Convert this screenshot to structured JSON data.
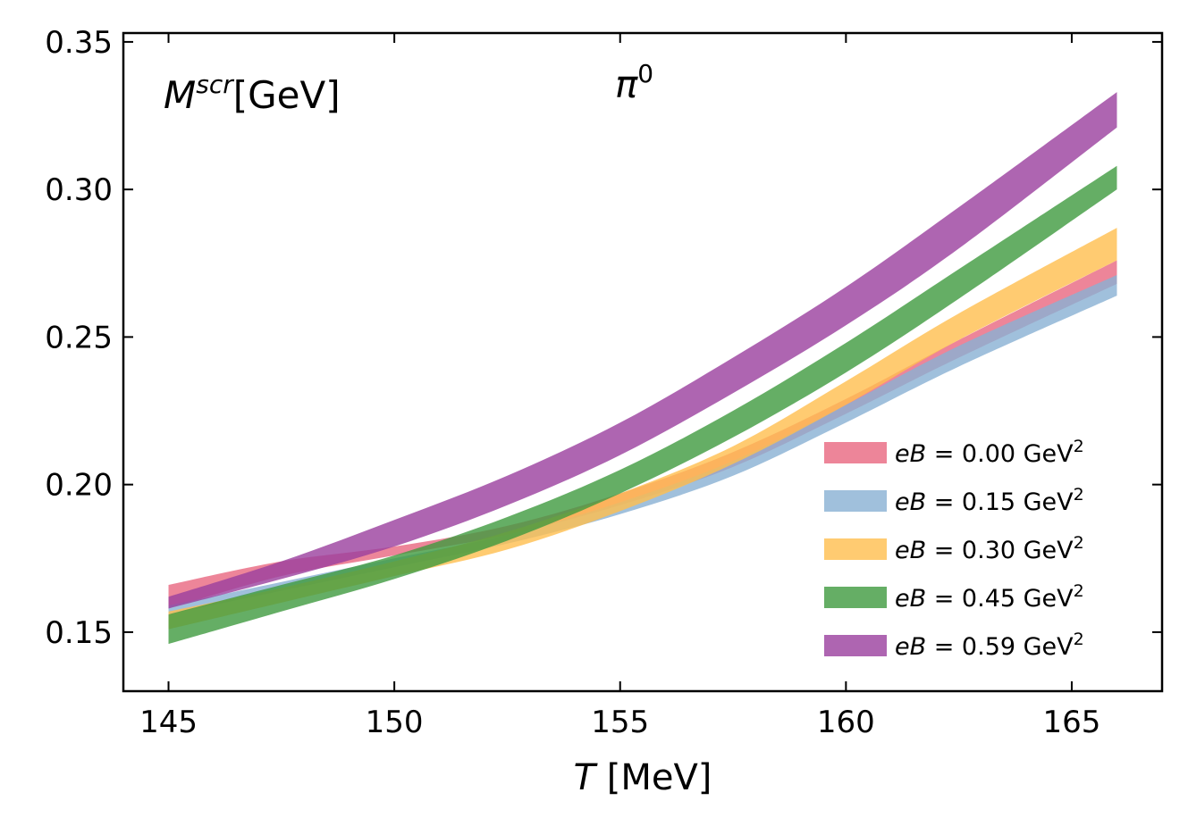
{
  "chart_data": {
    "type": "area",
    "title": "",
    "xlabel": "T [MeV]",
    "ylabel": "",
    "xlim": [
      144,
      167
    ],
    "ylim": [
      0.13,
      0.353
    ],
    "xticks": [
      145,
      150,
      155,
      160,
      165
    ],
    "xtick_labels": [
      "145",
      "150",
      "155",
      "160",
      "165"
    ],
    "yticks": [
      0.15,
      0.2,
      0.25,
      0.3,
      0.35
    ],
    "ytick_labels": [
      "0.15",
      "0.20",
      "0.25",
      "0.30",
      "0.35"
    ],
    "annotations": {
      "ylabel_inside": {
        "base": "M",
        "sup": "scr",
        "suffix": "[GeV]"
      },
      "particle": {
        "base": "π",
        "sup": "0"
      }
    },
    "legend_position": "lower right",
    "x": [
      145,
      147.5,
      150,
      152.5,
      155,
      157.5,
      160,
      162.5,
      166
    ],
    "series": [
      {
        "name": "eB = 0.00 GeV²",
        "label_parts": {
          "var": "eB",
          "value": " = 0.00 GeV",
          "sup": "2"
        },
        "color": "#e8667f",
        "lower": [
          0.158,
          0.169,
          0.176,
          0.183,
          0.193,
          0.206,
          0.224,
          0.243,
          0.268
        ],
        "upper": [
          0.166,
          0.174,
          0.179,
          0.186,
          0.197,
          0.211,
          0.229,
          0.249,
          0.276
        ]
      },
      {
        "name": "eB = 0.15 GeV²",
        "label_parts": {
          "var": "eB",
          "value": " = 0.15 GeV",
          "sup": "2"
        },
        "color": "#88b0d3",
        "lower": [
          0.156,
          0.164,
          0.172,
          0.18,
          0.19,
          0.203,
          0.221,
          0.24,
          0.264
        ],
        "upper": [
          0.159,
          0.167,
          0.175,
          0.183,
          0.194,
          0.208,
          0.227,
          0.247,
          0.271
        ]
      },
      {
        "name": "eB = 0.30 GeV²",
        "label_parts": {
          "var": "eB",
          "value": " = 0.30 GeV",
          "sup": "2"
        },
        "color": "#ffbe4d",
        "lower": [
          0.151,
          0.16,
          0.169,
          0.178,
          0.191,
          0.207,
          0.227,
          0.249,
          0.276
        ],
        "upper": [
          0.157,
          0.165,
          0.174,
          0.184,
          0.197,
          0.213,
          0.235,
          0.258,
          0.287
        ]
      },
      {
        "name": "eB = 0.45 GeV²",
        "label_parts": {
          "var": "eB",
          "value": " = 0.45 GeV",
          "sup": "2"
        },
        "color": "#3f9a3f",
        "lower": [
          0.146,
          0.157,
          0.168,
          0.181,
          0.197,
          0.216,
          0.238,
          0.263,
          0.3
        ],
        "upper": [
          0.156,
          0.166,
          0.176,
          0.189,
          0.205,
          0.225,
          0.248,
          0.273,
          0.308
        ]
      },
      {
        "name": "eB = 0.59 GeV²",
        "label_parts": {
          "var": "eB",
          "value": " = 0.59 GeV",
          "sup": "2"
        },
        "color": "#9a3f9e",
        "lower": [
          0.158,
          0.168,
          0.179,
          0.193,
          0.21,
          0.231,
          0.254,
          0.28,
          0.321
        ],
        "upper": [
          0.162,
          0.174,
          0.188,
          0.203,
          0.221,
          0.243,
          0.267,
          0.294,
          0.333
        ]
      }
    ]
  }
}
